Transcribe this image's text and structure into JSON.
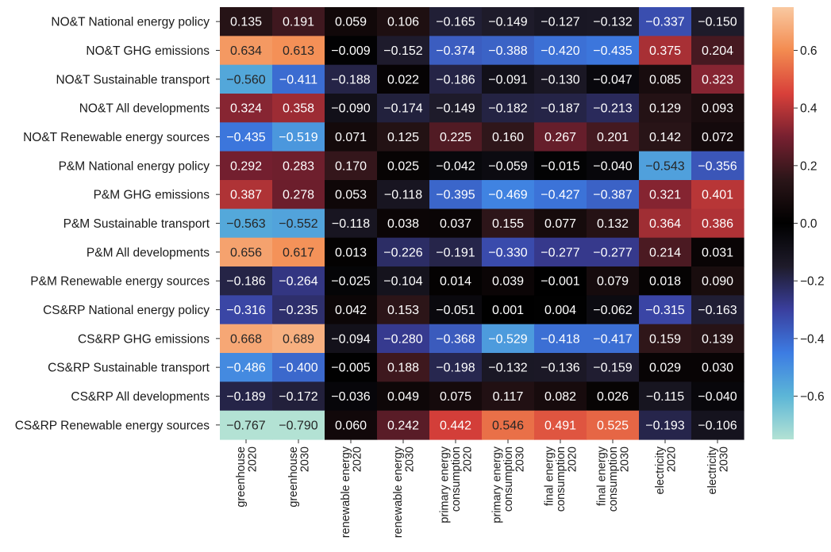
{
  "chart_data": {
    "type": "heatmap",
    "title": "",
    "xlabel": "",
    "ylabel": "",
    "rows": [
      "NO&T National energy policy",
      "NO&T GHG emissions",
      "NO&T Sustainable transport",
      "NO&T All developments",
      "NO&T Renewable energy sources",
      "P&M National energy policy",
      "P&M GHG emissions",
      "P&M Sustainable transport",
      "P&M All developments",
      "P&M Renewable energy sources",
      "CS&RP National energy policy",
      "CS&RP GHG emissions",
      "CS&RP Sustainable transport",
      "CS&RP All developments",
      "CS&RP Renewable energy sources"
    ],
    "columns": [
      [
        "greenhouse",
        "2020"
      ],
      [
        "greenhouse",
        "2030"
      ],
      [
        "renewable energy",
        "2020"
      ],
      [
        "renewable energy",
        "2030"
      ],
      [
        "primary energy",
        "consumption",
        "2020"
      ],
      [
        "primary energy",
        "consumption",
        "2030"
      ],
      [
        "final energy",
        "consumption",
        "2020"
      ],
      [
        "final energy",
        "consumption",
        "2030"
      ],
      [
        "electricity",
        "2020"
      ],
      [
        "electricity",
        "2030"
      ]
    ],
    "values": [
      [
        0.135,
        0.191,
        0.059,
        0.106,
        -0.165,
        -0.149,
        -0.127,
        -0.132,
        -0.337,
        -0.15
      ],
      [
        0.634,
        0.613,
        -0.009,
        -0.152,
        -0.374,
        -0.388,
        -0.42,
        -0.435,
        0.375,
        0.204
      ],
      [
        -0.56,
        -0.411,
        -0.188,
        0.022,
        -0.186,
        -0.091,
        -0.13,
        -0.047,
        0.085,
        0.323
      ],
      [
        0.324,
        0.358,
        -0.09,
        -0.174,
        -0.149,
        -0.182,
        -0.187,
        -0.213,
        0.129,
        0.093
      ],
      [
        -0.435,
        -0.519,
        0.071,
        0.125,
        0.225,
        0.16,
        0.267,
        0.201,
        0.142,
        0.072
      ],
      [
        0.292,
        0.283,
        0.17,
        0.025,
        -0.042,
        -0.059,
        -0.015,
        -0.04,
        -0.543,
        -0.356
      ],
      [
        0.387,
        0.278,
        0.053,
        -0.118,
        -0.395,
        -0.469,
        -0.427,
        -0.387,
        0.321,
        0.401
      ],
      [
        -0.563,
        -0.552,
        -0.118,
        0.038,
        0.037,
        0.155,
        0.077,
        0.132,
        0.364,
        0.386
      ],
      [
        0.656,
        0.617,
        0.013,
        -0.226,
        -0.191,
        -0.33,
        -0.277,
        -0.277,
        0.214,
        0.031
      ],
      [
        -0.186,
        -0.264,
        -0.025,
        -0.104,
        0.014,
        0.039,
        -0.001,
        0.079,
        0.018,
        0.09
      ],
      [
        -0.316,
        -0.235,
        0.042,
        0.153,
        -0.051,
        0.001,
        0.004,
        -0.062,
        -0.315,
        -0.163
      ],
      [
        0.668,
        0.689,
        -0.094,
        -0.28,
        -0.368,
        -0.529,
        -0.418,
        -0.417,
        0.159,
        0.139
      ],
      [
        -0.486,
        -0.4,
        -0.005,
        0.188,
        -0.198,
        -0.132,
        -0.136,
        -0.159,
        0.029,
        0.03
      ],
      [
        -0.189,
        -0.172,
        -0.036,
        0.049,
        0.075,
        0.117,
        0.082,
        0.026,
        -0.115,
        -0.04
      ],
      [
        -0.767,
        -0.79,
        0.06,
        0.242,
        0.442,
        0.546,
        0.491,
        0.525,
        -0.193,
        -0.106
      ]
    ],
    "colorbar": {
      "range": [
        -0.75,
        0.75
      ],
      "ticks": [
        -0.6,
        -0.4,
        -0.2,
        0.0,
        0.2,
        0.4,
        0.6
      ],
      "tick_labels": [
        "−0.6",
        "−0.4",
        "−0.2",
        "0.0",
        "0.2",
        "0.4",
        "0.6"
      ],
      "colormap": "icefire",
      "color_stops": [
        "#b3e2d4",
        "#5cb6d7",
        "#3c7ce3",
        "#3a3f9e",
        "#1e1b2a",
        "#000000",
        "#2a1518",
        "#772030",
        "#d8403a",
        "#f38b50",
        "#f9c9a1"
      ]
    },
    "value_format": "3 decimals"
  }
}
